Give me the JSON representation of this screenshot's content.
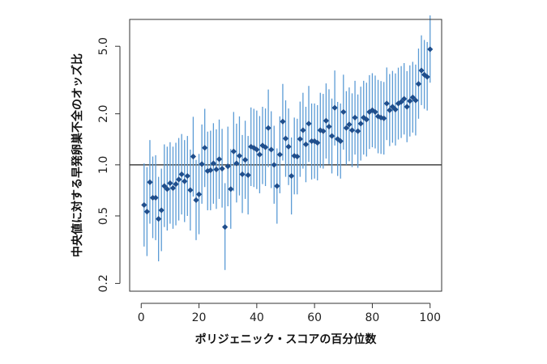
{
  "chart_data": {
    "type": "scatter",
    "title": "",
    "xlabel": "ポリジェニック・スコアの百分位数",
    "ylabel": "中央値に対する早発卵巣不全のオッズ比",
    "y_scale": "log",
    "xlim": [
      0,
      100
    ],
    "ylim": [
      0.18,
      7.2
    ],
    "x_ticks": [
      0,
      20,
      40,
      60,
      80,
      100
    ],
    "y_ticks": [
      0.2,
      0.5,
      1.0,
      2.0,
      5.0
    ],
    "reference_line": 1.0,
    "grid": false,
    "legend": "none",
    "colors": {
      "point": "#1f4e8c",
      "errorbar": "#5b9bd5",
      "reference": "#333333",
      "axis": "#333333"
    },
    "x": [
      1,
      2,
      3,
      4,
      5,
      6,
      7,
      8,
      9,
      10,
      11,
      12,
      13,
      14,
      15,
      16,
      17,
      18,
      19,
      20,
      21,
      22,
      23,
      24,
      25,
      26,
      27,
      28,
      29,
      30,
      31,
      32,
      33,
      34,
      35,
      36,
      37,
      38,
      39,
      40,
      41,
      42,
      43,
      44,
      45,
      46,
      47,
      48,
      49,
      50,
      51,
      52,
      53,
      54,
      55,
      56,
      57,
      58,
      59,
      60,
      61,
      62,
      63,
      64,
      65,
      66,
      67,
      68,
      69,
      70,
      71,
      72,
      73,
      74,
      75,
      76,
      77,
      78,
      79,
      80,
      81,
      82,
      83,
      84,
      85,
      86,
      87,
      88,
      89,
      90,
      91,
      92,
      93,
      94,
      95,
      96,
      97,
      98,
      99,
      100
    ],
    "y": [
      0.58,
      0.53,
      0.79,
      0.64,
      0.64,
      0.48,
      0.54,
      0.75,
      0.72,
      0.78,
      0.73,
      0.77,
      0.82,
      0.88,
      0.8,
      0.86,
      0.71,
      1.12,
      0.62,
      0.67,
      1.01,
      1.26,
      0.92,
      0.93,
      1.02,
      0.94,
      1.08,
      0.95,
      0.43,
      0.98,
      0.72,
      1.2,
      1.02,
      1.13,
      0.88,
      1.07,
      0.87,
      1.28,
      1.26,
      1.23,
      1.15,
      1.3,
      1.27,
      1.65,
      1.23,
      1.0,
      0.75,
      1.15,
      1.8,
      1.43,
      1.28,
      0.86,
      1.13,
      1.12,
      1.42,
      1.6,
      1.32,
      1.75,
      1.38,
      1.38,
      1.35,
      1.6,
      1.58,
      1.82,
      1.68,
      1.48,
      2.17,
      1.42,
      1.38,
      2.05,
      1.65,
      1.73,
      1.6,
      1.9,
      1.58,
      1.75,
      1.9,
      1.85,
      2.05,
      2.1,
      2.05,
      1.93,
      1.9,
      1.88,
      2.3,
      2.1,
      2.2,
      2.12,
      2.3,
      2.35,
      2.45,
      2.2,
      2.38,
      2.5,
      2.4,
      3.0,
      3.6,
      3.4,
      3.3,
      4.8
    ],
    "lower": [
      0.33,
      0.29,
      0.45,
      0.37,
      0.36,
      0.27,
      0.31,
      0.43,
      0.41,
      0.45,
      0.42,
      0.44,
      0.47,
      0.51,
      0.46,
      0.5,
      0.41,
      0.65,
      0.36,
      0.39,
      0.59,
      0.74,
      0.54,
      0.54,
      0.59,
      0.55,
      0.63,
      0.56,
      0.24,
      0.57,
      0.42,
      0.7,
      0.6,
      0.66,
      0.52,
      0.63,
      0.51,
      0.75,
      0.74,
      0.72,
      0.68,
      0.77,
      0.75,
      0.97,
      0.73,
      0.59,
      0.45,
      0.68,
      1.06,
      0.85,
      0.76,
      0.51,
      0.67,
      0.67,
      0.85,
      0.95,
      0.79,
      1.04,
      0.82,
      0.83,
      0.81,
      0.96,
      0.95,
      1.09,
      1.01,
      0.89,
      1.3,
      0.86,
      0.83,
      1.23,
      1.0,
      1.05,
      0.97,
      1.15,
      0.96,
      1.06,
      1.15,
      1.12,
      1.24,
      1.27,
      1.25,
      1.17,
      1.16,
      1.15,
      1.4,
      1.29,
      1.35,
      1.3,
      1.41,
      1.44,
      1.51,
      1.36,
      1.47,
      1.55,
      1.49,
      1.87,
      2.25,
      2.14,
      2.09,
      3.05
    ],
    "upper": [
      1.02,
      0.97,
      1.4,
      1.12,
      1.14,
      0.85,
      0.95,
      1.32,
      1.28,
      1.36,
      1.28,
      1.35,
      1.44,
      1.52,
      1.4,
      1.48,
      1.23,
      1.92,
      1.07,
      1.16,
      1.73,
      2.14,
      1.57,
      1.59,
      1.76,
      1.62,
      1.85,
      1.63,
      0.78,
      1.68,
      1.24,
      2.05,
      1.75,
      1.93,
      1.5,
      1.82,
      1.48,
      2.18,
      2.14,
      2.09,
      1.94,
      2.2,
      2.15,
      2.78,
      2.07,
      1.7,
      1.25,
      1.93,
      3.0,
      2.4,
      2.15,
      1.45,
      1.9,
      1.87,
      2.36,
      2.66,
      2.2,
      2.92,
      2.3,
      2.3,
      2.25,
      2.66,
      2.62,
      3.02,
      2.79,
      2.46,
      3.6,
      2.35,
      2.3,
      3.4,
      2.72,
      2.86,
      2.64,
      3.13,
      2.6,
      2.89,
      3.13,
      3.05,
      3.38,
      3.47,
      3.36,
      3.17,
      3.12,
      3.08,
      3.75,
      3.43,
      3.58,
      3.46,
      3.74,
      3.82,
      3.98,
      3.57,
      3.86,
      4.05,
      3.9,
      4.85,
      5.8,
      5.45,
      5.3,
      7.6
    ]
  }
}
